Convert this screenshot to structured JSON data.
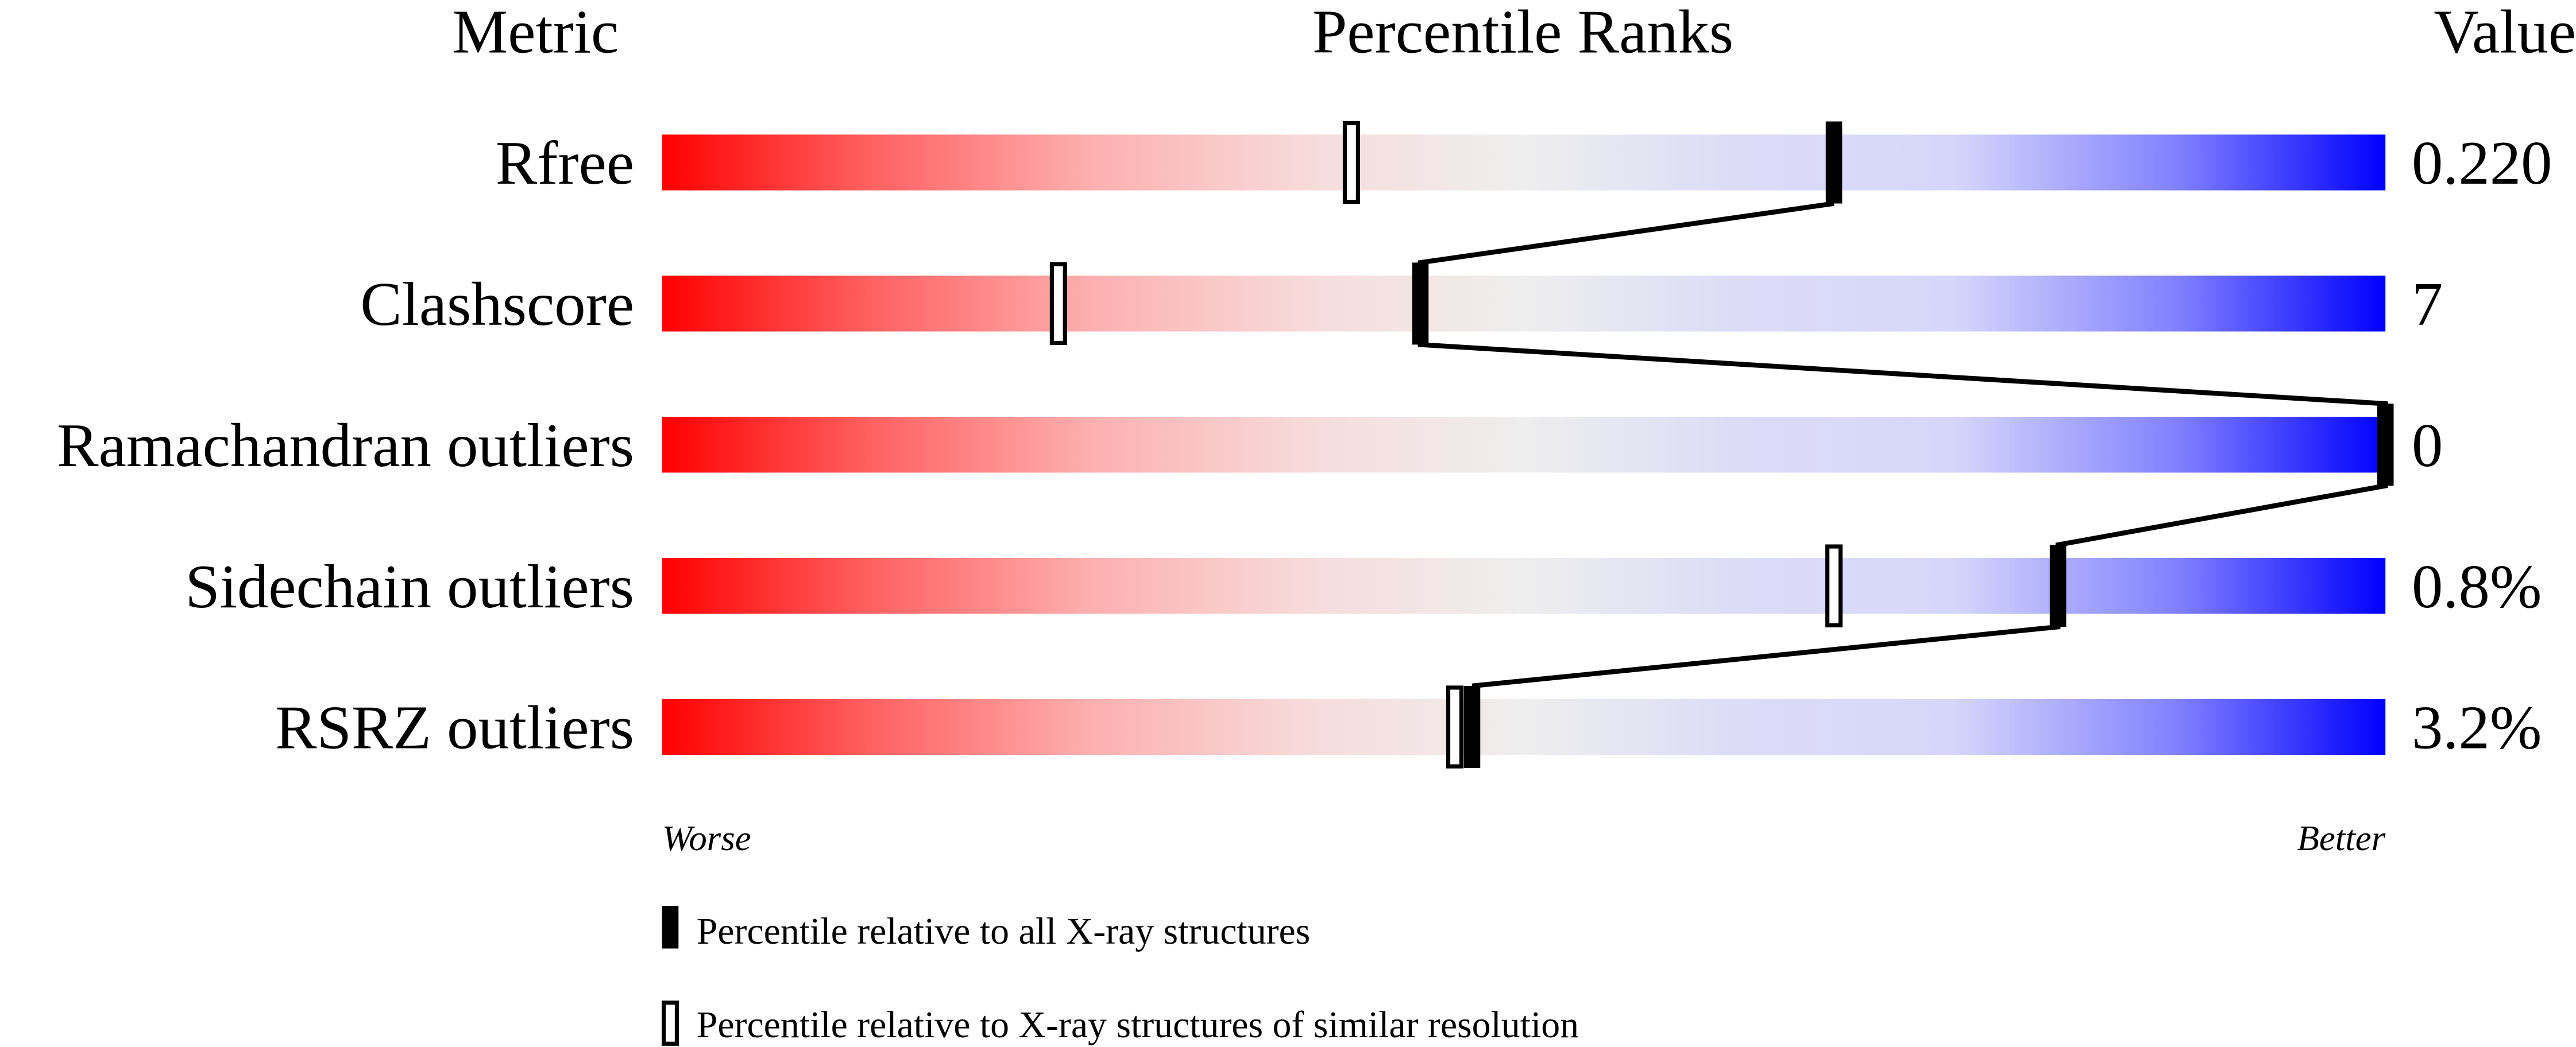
{
  "chart_data": {
    "type": "percentile-slider",
    "headers": {
      "metric": "Metric",
      "ranks": "Percentile Ranks",
      "value": "Value"
    },
    "xlim": [
      0,
      100
    ],
    "axis_labels": {
      "left": "Worse",
      "right": "Better"
    },
    "metrics": [
      {
        "name": "Rfree",
        "value": "0.220",
        "percentile_all": 68,
        "percentile_similar": 40
      },
      {
        "name": "Clashscore",
        "value": "7",
        "percentile_all": 44,
        "percentile_similar": 23
      },
      {
        "name": "Ramachandran outliers",
        "value": "0",
        "percentile_all": 100,
        "percentile_similar": null
      },
      {
        "name": "Sidechain outliers",
        "value": "0.8%",
        "percentile_all": 81,
        "percentile_similar": 68
      },
      {
        "name": "RSRZ outliers",
        "value": "3.2%",
        "percentile_all": 47,
        "percentile_similar": 46
      }
    ],
    "legend": [
      {
        "marker": "filled",
        "label": "Percentile relative to all X-ray structures"
      },
      {
        "marker": "open",
        "label": "Percentile relative to X-ray structures of similar resolution"
      }
    ],
    "colors": {
      "worse": "#ff0000",
      "mid": "#eeeeee",
      "better": "#0000ff"
    }
  }
}
